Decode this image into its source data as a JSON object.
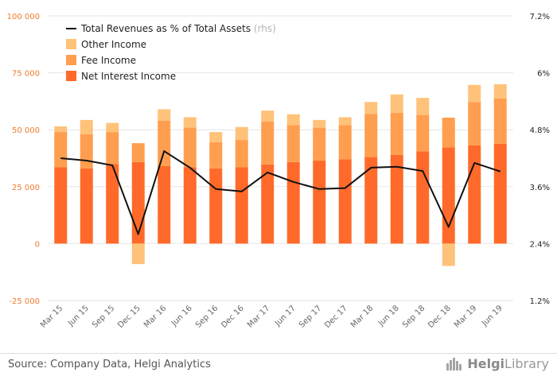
{
  "chart_data": {
    "type": "bar",
    "subtype": "stacked-bar-with-line",
    "categories": [
      "Mar 15",
      "Jun 15",
      "Sep 15",
      "Dec 15",
      "Mar 16",
      "Jun 16",
      "Sep 16",
      "Dec 16",
      "Mar 17",
      "Jun 17",
      "Sep 17",
      "Dec 17",
      "Mar 18",
      "Jun 18",
      "Sep 18",
      "Dec 18",
      "Mar 19",
      "Jun 19"
    ],
    "series": [
      {
        "name": "Net Interest Income",
        "kind": "bar",
        "axis": "left",
        "color": "#ff6a2a",
        "values": [
          33500,
          33000,
          35000,
          35800,
          34000,
          33500,
          33000,
          33500,
          34800,
          35800,
          36500,
          37000,
          38000,
          39000,
          40500,
          42300,
          43200,
          43800
        ]
      },
      {
        "name": "Fee Income",
        "kind": "bar",
        "axis": "left",
        "color": "#ff9e4f",
        "values": [
          15500,
          15000,
          14000,
          8300,
          20000,
          17500,
          11500,
          12000,
          18800,
          16200,
          14500,
          15000,
          19000,
          18500,
          16000,
          13000,
          19000,
          20000
        ]
      },
      {
        "name": "Other Income",
        "kind": "bar",
        "axis": "left",
        "color": "#ffc27a",
        "values": [
          2500,
          6300,
          4000,
          -9000,
          5000,
          4500,
          4500,
          5700,
          4800,
          4800,
          3300,
          3500,
          5200,
          8000,
          7500,
          -9800,
          7500,
          6200
        ]
      },
      {
        "name": "Total Revenues as % of Total Assets",
        "name_suffix": "(rhs)",
        "kind": "line",
        "axis": "right",
        "color": "#111111",
        "values": [
          4.2,
          4.15,
          4.05,
          2.6,
          4.35,
          4.0,
          3.55,
          3.5,
          3.9,
          3.7,
          3.55,
          3.57,
          4.0,
          4.02,
          3.93,
          2.75,
          4.1,
          3.92
        ]
      }
    ],
    "y_left": {
      "min": -25000,
      "max": 100000,
      "ticks": [
        -25000,
        0,
        25000,
        50000,
        75000,
        100000
      ],
      "tick_labels": [
        "-25 000",
        "0",
        "25 000",
        "50 000",
        "75 000",
        "100 000"
      ],
      "label_color": "#f07a2a"
    },
    "y_right": {
      "min": 1.2,
      "max": 7.2,
      "ticks": [
        1.2,
        2.4,
        3.6,
        4.8,
        6.0,
        7.2
      ],
      "tick_labels": [
        "1.2%",
        "2.4%",
        "3.6%",
        "4.8%",
        "6%",
        "7.2%"
      ]
    },
    "legend_placement": "top-left",
    "grid": true
  },
  "footer": {
    "source": "Source: Company Data, Helgi Analytics",
    "logo_prefix": "Helgi",
    "logo_suffix": "Library"
  }
}
